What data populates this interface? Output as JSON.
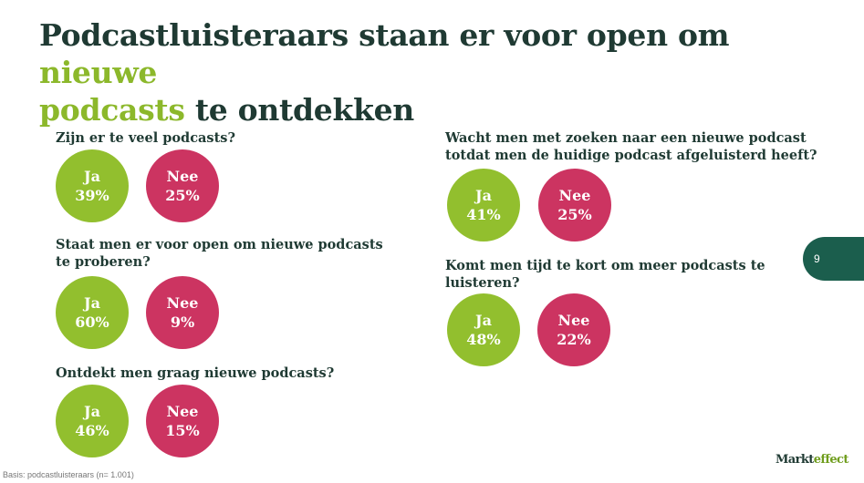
{
  "title": {
    "part1": "Podcastluisteraars staan er voor open om ",
    "accent1": "nieuwe",
    "accent2": "podcasts",
    "part2": " te ontdekken"
  },
  "colors": {
    "ja": "#92bf2e",
    "nee": "#cc3461",
    "title": "#1f3a33",
    "accent": "#8cb82b",
    "tab": "#1b5e4d"
  },
  "questions": [
    {
      "text": "Zijn er te veel podcasts?",
      "ja_label": "Ja",
      "ja_value": "39%",
      "nee_label": "Nee",
      "nee_value": "25%"
    },
    {
      "line1": "Staat men er voor open om nieuwe podcasts",
      "line2": "te proberen?",
      "ja_label": "Ja",
      "ja_value": "60%",
      "nee_label": "Nee",
      "nee_value": "9%"
    },
    {
      "text": "Ontdekt men graag nieuwe podcasts?",
      "ja_label": "Ja",
      "ja_value": "46%",
      "nee_label": "Nee",
      "nee_value": "15%"
    },
    {
      "line1": "Wacht men met zoeken naar een nieuwe podcast",
      "line2": "totdat men de huidige podcast afgeluisterd heeft?",
      "ja_label": "Ja",
      "ja_value": "41%",
      "nee_label": "Nee",
      "nee_value": "25%"
    },
    {
      "line1": "Komt men tijd te kort om meer podcasts te",
      "line2": "luisteren?",
      "ja_label": "Ja",
      "ja_value": "48%",
      "nee_label": "Nee",
      "nee_value": "22%"
    }
  ],
  "page_number": "9",
  "basis": "Basis: podcastluisteraars (n= 1.001)",
  "logo": {
    "part1": "Markt",
    "part2": "effect"
  }
}
